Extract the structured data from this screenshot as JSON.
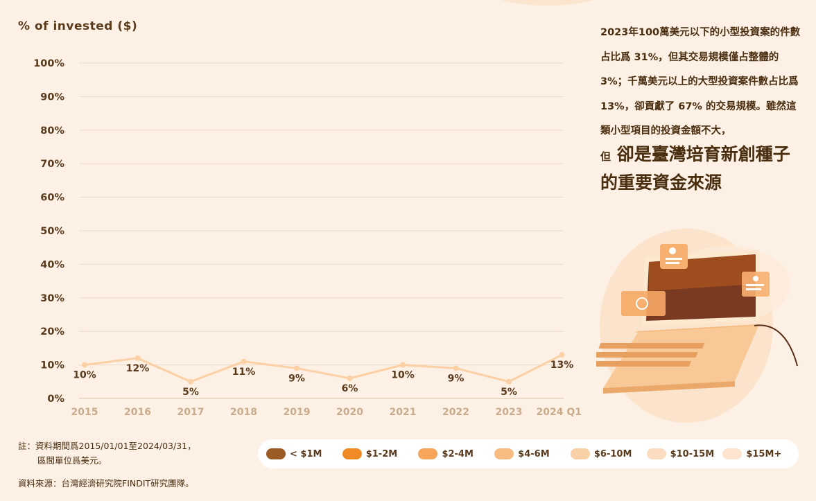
{
  "chart_data": {
    "type": "line",
    "title": "",
    "ylabel": "% of invested ($)",
    "xlabel": "",
    "categories": [
      "2015",
      "2016",
      "2017",
      "2018",
      "2019",
      "2020",
      "2021",
      "2022",
      "2023",
      "2024 Q1"
    ],
    "series": [
      {
        "values": [
          10,
          12,
          5,
          11,
          9,
          6,
          10,
          9,
          5,
          13
        ]
      }
    ],
    "data_labels": [
      "10%",
      "12%",
      "5%",
      "11%",
      "9%",
      "6%",
      "10%",
      "9%",
      "5%",
      "13%"
    ],
    "yticks": [
      "0%",
      "10%",
      "20%",
      "30%",
      "40%",
      "50%",
      "60%",
      "70%",
      "80%",
      "90%",
      "100%"
    ],
    "ylim": [
      0,
      100
    ],
    "grid": true,
    "line_color": "#fbd0a4",
    "legend": [
      {
        "label": "< $1M",
        "color": "#9c5a25"
      },
      {
        "label": "$1-2M",
        "color": "#f08a24"
      },
      {
        "label": "$2-4M",
        "color": "#f6a55a"
      },
      {
        "label": "$4-6M",
        "color": "#f8bc80"
      },
      {
        "label": "$6-10M",
        "color": "#fad0a8"
      },
      {
        "label": "$10-15M",
        "color": "#fbdcc0"
      },
      {
        "label": "$15M+",
        "color": "#fce4cf"
      }
    ]
  },
  "side_text": "2023年100萬美元以下的小型投資案的件數占比爲 31%，但其交易規模僅占整體的 3%；千萬美元以上的大型投資案件數占比爲 13%，卻貢獻了 67% 的交易規模。雖然這類小型項目的投資金額不大，",
  "side_highlight_small": "但",
  "side_highlight": "卻是臺灣培育新創種子的重要資金來源",
  "note_line1": "註：資料期間爲2015/01/01至2024/03/31，",
  "note_line2": "區間單位爲美元。",
  "source": "資料來源：台灣經濟研究院FINDIT研究團隊。",
  "colors": {
    "background": "#fdf0e4",
    "accent": "#f08a24"
  }
}
